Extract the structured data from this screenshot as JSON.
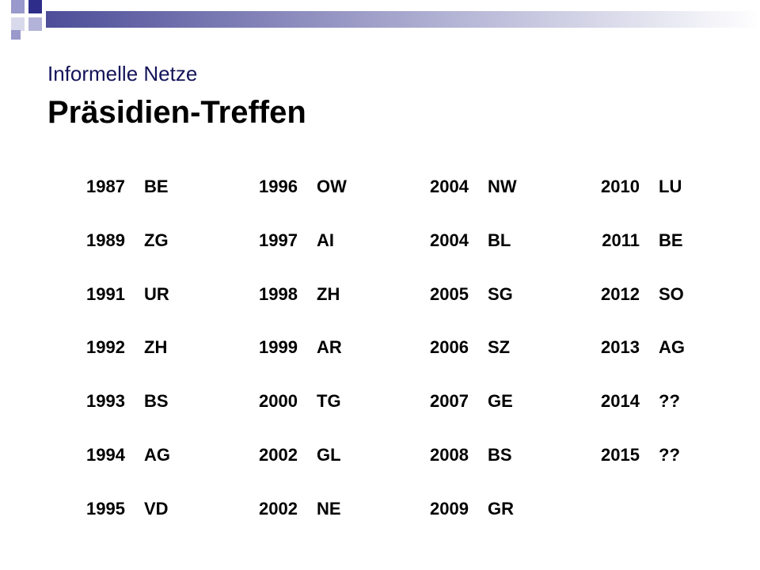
{
  "header": {
    "title": "Informelle Netze",
    "subtitle": "Präsidien-Treffen"
  },
  "table": {
    "columns": [
      [
        [
          "1987",
          "BE"
        ],
        [
          "1989",
          "ZG"
        ],
        [
          "1991",
          "UR"
        ],
        [
          "1992",
          "ZH"
        ],
        [
          "1993",
          "BS"
        ],
        [
          "1994",
          "AG"
        ],
        [
          "1995",
          "VD"
        ]
      ],
      [
        [
          "1996",
          "OW"
        ],
        [
          "1997",
          "AI"
        ],
        [
          "1998",
          "ZH"
        ],
        [
          "1999",
          "AR"
        ],
        [
          "2000",
          "TG"
        ],
        [
          "2002",
          "GL"
        ],
        [
          "2002",
          "NE"
        ]
      ],
      [
        [
          "2004",
          "NW"
        ],
        [
          "2004",
          "BL"
        ],
        [
          "2005",
          "SG"
        ],
        [
          "2006",
          "SZ"
        ],
        [
          "2007",
          "GE"
        ],
        [
          "2008",
          "BS"
        ],
        [
          "2009",
          "GR"
        ]
      ],
      [
        [
          "2010",
          "LU"
        ],
        [
          "2011",
          "BE"
        ],
        [
          "2012",
          "SO"
        ],
        [
          "2013",
          "AG"
        ],
        [
          "2014",
          "??"
        ],
        [
          "2015",
          "??"
        ]
      ]
    ]
  }
}
